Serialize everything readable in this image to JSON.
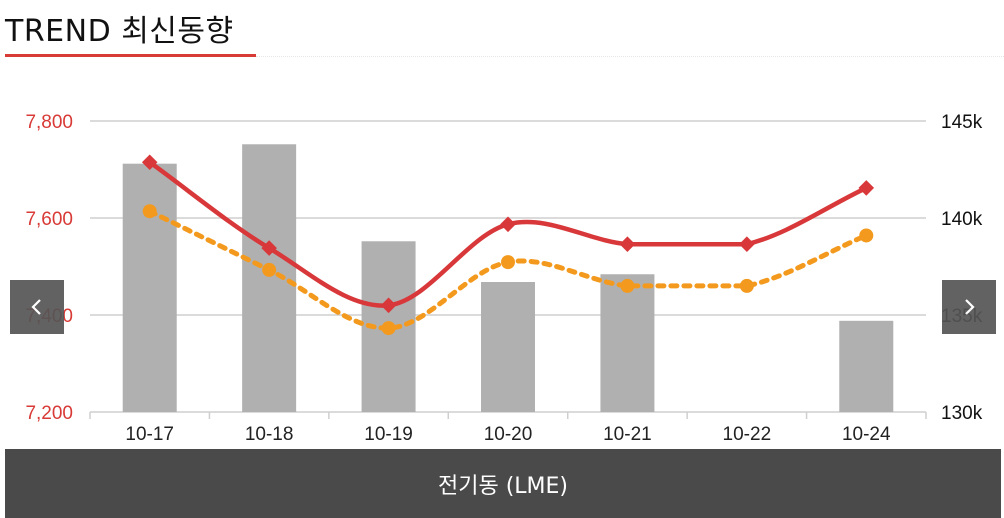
{
  "header": {
    "title": "TREND 최신동향"
  },
  "footer": {
    "label": "전기동 (LME)"
  },
  "nav": {
    "prev_icon": "chevron-left-icon",
    "next_icon": "chevron-right-icon"
  },
  "colors": {
    "accent": "#d83a36",
    "line_main": "#d9383a",
    "line_dotted": "#f39a1e",
    "bar": "#b0b0b0",
    "footer_bg": "#4a4a4a"
  },
  "chart_data": {
    "type": "bar",
    "categories": [
      "10-17",
      "10-18",
      "10-19",
      "10-20",
      "10-21",
      "10-22",
      "10-24"
    ],
    "y_left": {
      "ticks": [
        "7,200",
        "7,400",
        "7,600",
        "7,800"
      ],
      "range": [
        7200,
        7800
      ]
    },
    "y_right": {
      "ticks": [
        "130k",
        "135k",
        "140k",
        "145k"
      ],
      "range": [
        130000,
        145000
      ]
    },
    "grid": true,
    "bars": {
      "axis": "right",
      "values": [
        142800,
        143800,
        138800,
        136700,
        137100,
        null,
        134700
      ]
    },
    "series": [
      {
        "type": "line",
        "style": "solid",
        "axis": "left",
        "values": [
          7715,
          7538,
          7420,
          7587,
          7546,
          7546,
          7662
        ]
      },
      {
        "type": "line",
        "style": "dotted",
        "axis": "left",
        "values": [
          7614,
          7493,
          7373,
          7509,
          7460,
          7460,
          7564
        ]
      }
    ]
  }
}
